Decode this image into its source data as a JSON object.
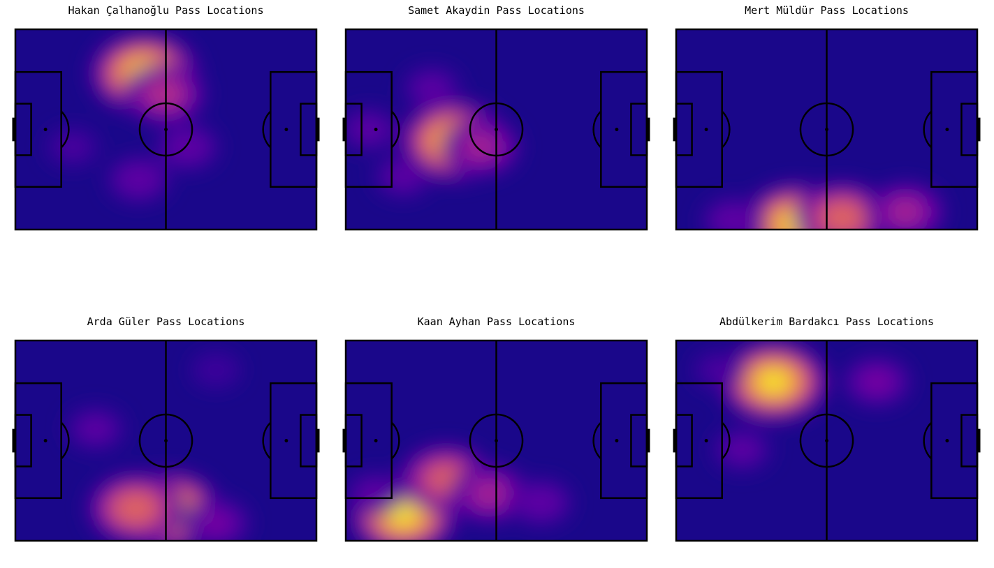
{
  "chart_data": [
    {
      "type": "heatmap",
      "title": "Hakan Çalhanoğlu Pass Locations",
      "pitch": {
        "length": 105,
        "width": 68
      },
      "colormap": "plasma",
      "density_peaks": [
        {
          "x": 45,
          "y": 15,
          "intensity": 1.0
        },
        {
          "x": 52,
          "y": 22,
          "intensity": 0.6
        },
        {
          "x": 43,
          "y": 51,
          "intensity": 0.35
        },
        {
          "x": 60,
          "y": 40,
          "intensity": 0.35
        },
        {
          "x": 20,
          "y": 40,
          "intensity": 0.25
        }
      ]
    },
    {
      "type": "heatmap",
      "title": "Samet Akaydin Pass Locations",
      "pitch": {
        "length": 105,
        "width": 68
      },
      "colormap": "plasma",
      "density_peaks": [
        {
          "x": 38,
          "y": 38,
          "intensity": 1.0
        },
        {
          "x": 47,
          "y": 40,
          "intensity": 0.55
        },
        {
          "x": 30,
          "y": 20,
          "intensity": 0.3
        },
        {
          "x": 20,
          "y": 50,
          "intensity": 0.3
        },
        {
          "x": 8,
          "y": 34,
          "intensity": 0.3
        }
      ]
    },
    {
      "type": "heatmap",
      "title": "Mert Müldür Pass Locations",
      "pitch": {
        "length": 105,
        "width": 68
      },
      "colormap": "plasma",
      "density_peaks": [
        {
          "x": 42,
          "y": 66,
          "intensity": 1.0
        },
        {
          "x": 58,
          "y": 64,
          "intensity": 0.8
        },
        {
          "x": 80,
          "y": 62,
          "intensity": 0.55
        },
        {
          "x": 20,
          "y": 65,
          "intensity": 0.35
        }
      ]
    },
    {
      "type": "heatmap",
      "title": "Arda Güler Pass Locations",
      "pitch": {
        "length": 105,
        "width": 68
      },
      "colormap": "plasma",
      "density_peaks": [
        {
          "x": 53,
          "y": 58,
          "intensity": 1.0
        },
        {
          "x": 42,
          "y": 57,
          "intensity": 0.8
        },
        {
          "x": 70,
          "y": 62,
          "intensity": 0.4
        },
        {
          "x": 28,
          "y": 30,
          "intensity": 0.3
        },
        {
          "x": 70,
          "y": 10,
          "intensity": 0.22
        }
      ]
    },
    {
      "type": "heatmap",
      "title": "Kaan Ayhan Pass Locations",
      "pitch": {
        "length": 105,
        "width": 68
      },
      "colormap": "plasma",
      "density_peaks": [
        {
          "x": 20,
          "y": 59,
          "intensity": 1.0
        },
        {
          "x": 35,
          "y": 47,
          "intensity": 0.75
        },
        {
          "x": 50,
          "y": 52,
          "intensity": 0.55
        },
        {
          "x": 68,
          "y": 55,
          "intensity": 0.35
        },
        {
          "x": 10,
          "y": 52,
          "intensity": 0.3
        }
      ]
    },
    {
      "type": "heatmap",
      "title": "Abdülkerim Bardakcı Pass Locations",
      "pitch": {
        "length": 105,
        "width": 68
      },
      "colormap": "plasma",
      "density_peaks": [
        {
          "x": 34,
          "y": 14,
          "intensity": 1.0
        },
        {
          "x": 70,
          "y": 14,
          "intensity": 0.4
        },
        {
          "x": 23,
          "y": 37,
          "intensity": 0.3
        },
        {
          "x": 15,
          "y": 10,
          "intensity": 0.25
        }
      ]
    }
  ]
}
